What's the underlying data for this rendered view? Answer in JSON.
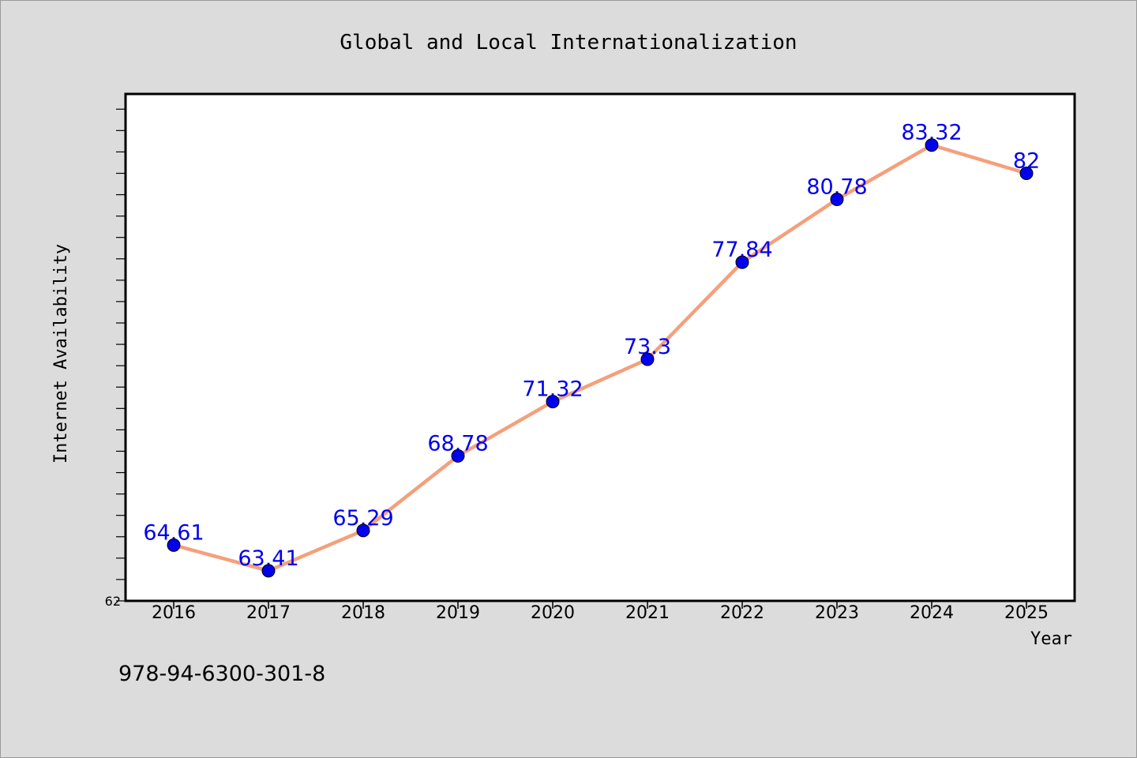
{
  "chart_data": {
    "type": "line",
    "title": "Global and Local Internationalization",
    "xlabel": "Year",
    "ylabel": "Internet Availability",
    "x": [
      2016,
      2017,
      2018,
      2019,
      2020,
      2021,
      2022,
      2023,
      2024,
      2025
    ],
    "series": [
      {
        "values": [
          64.61,
          63.41,
          65.29,
          68.78,
          71.32,
          73.3,
          77.84,
          80.78,
          83.32,
          82
        ],
        "data_labels": [
          "64.61",
          "63.41",
          "65.29",
          "68.78",
          "71.32",
          "73.3",
          "77.84",
          "80.78",
          "83.32",
          "82"
        ],
        "line_color": "#f4a07c",
        "marker_color": "#0000ee"
      }
    ],
    "ylim": [
      62,
      85
    ],
    "y_tick_labels": [
      "62"
    ],
    "grid": false,
    "legend": "none",
    "footnote": "978-94-6300-301-8"
  }
}
